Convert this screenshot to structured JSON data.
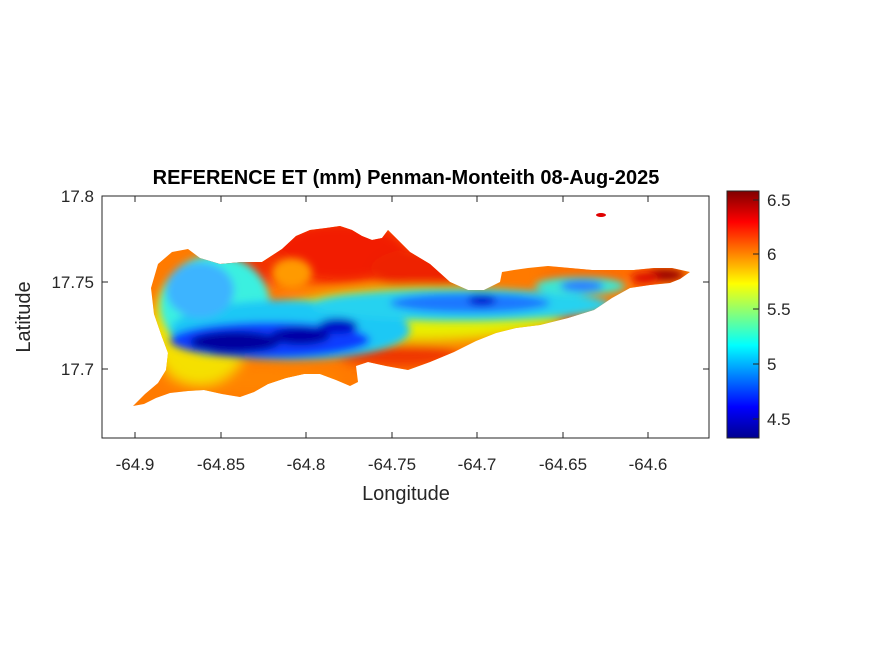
{
  "title": "REFERENCE ET (mm) Penman-Monteith 08-Aug-2025",
  "xlabel": "Longitude",
  "ylabel": "Latitude",
  "x_ticks": [
    "-64.9",
    "-64.85",
    "-64.8",
    "-64.75",
    "-64.7",
    "-64.65",
    "-64.6"
  ],
  "y_ticks": [
    "17.8",
    "17.75",
    "17.7"
  ],
  "colorbar_ticks": [
    "6.5",
    "6",
    "5.5",
    "5",
    "4.5"
  ],
  "chart_data": {
    "type": "heatmap",
    "title": "REFERENCE ET (mm) Penman-Monteith 08-Aug-2025",
    "xlabel": "Longitude",
    "ylabel": "Latitude",
    "xlim": [
      -64.92,
      -64.56
    ],
    "ylim": [
      17.655,
      17.8
    ],
    "x_ticks": [
      -64.9,
      -64.85,
      -64.8,
      -64.75,
      -64.7,
      -64.65,
      -64.6
    ],
    "y_ticks": [
      17.7,
      17.75,
      17.8
    ],
    "colorbar": {
      "colormap": "jet",
      "range": [
        4.32,
        6.56
      ],
      "ticks": [
        4.5,
        5,
        5.5,
        6,
        6.5
      ]
    },
    "value_zones": [
      {
        "region": "north coast and west hills",
        "value": 6.3
      },
      {
        "region": "southern coast",
        "value": 6.0
      },
      {
        "region": "eastern tip",
        "value": 6.55
      },
      {
        "region": "western interior lowland",
        "value": 5.1
      },
      {
        "region": "central valley core",
        "value": 4.4
      },
      {
        "region": "eastern ridge spine",
        "value": 4.9
      }
    ],
    "grid": false
  }
}
